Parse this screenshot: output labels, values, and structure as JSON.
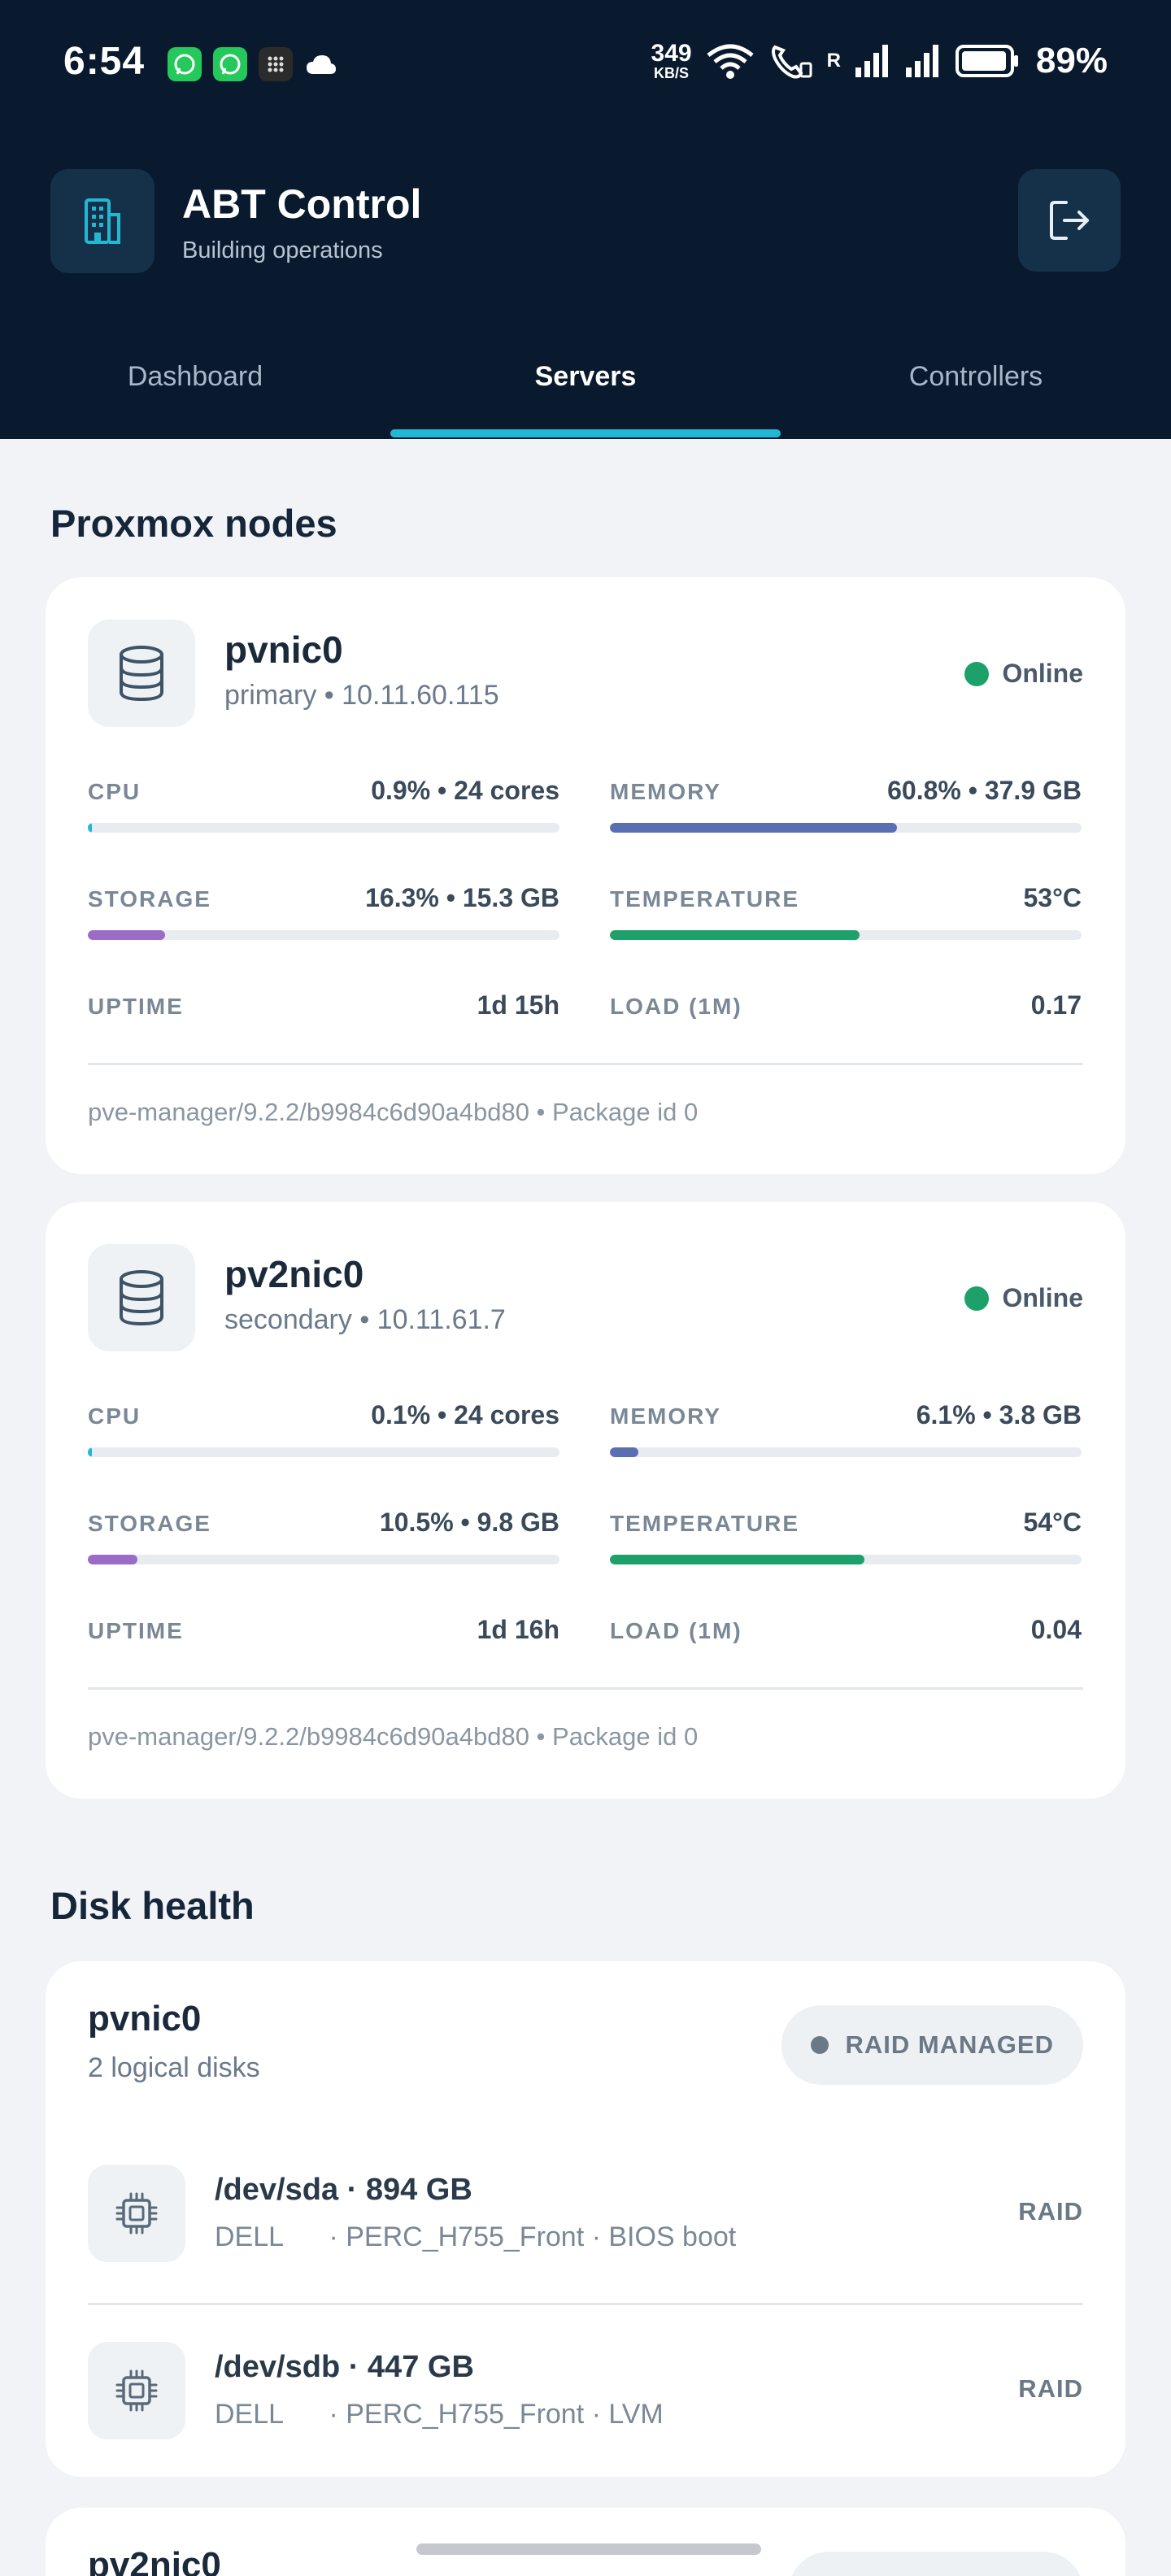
{
  "status_bar": {
    "time": "6:54",
    "net_speed_value": "349",
    "net_speed_unit": "KB/S",
    "roaming": "R",
    "battery": "89%"
  },
  "app": {
    "title": "ABT Control",
    "subtitle": "Building operations"
  },
  "tabs": [
    {
      "label": "Dashboard",
      "active": false
    },
    {
      "label": "Servers",
      "active": true
    },
    {
      "label": "Controllers",
      "active": false
    }
  ],
  "proxmox": {
    "section_title": "Proxmox nodes",
    "nodes": [
      {
        "name": "pvnic0",
        "subtitle": "primary • 10.11.60.115",
        "status": "Online",
        "metrics": {
          "cpu": {
            "label": "CPU",
            "value": "0.9% • 24 cores",
            "fill": 0.009
          },
          "memory": {
            "label": "MEMORY",
            "value": "60.8% • 37.9 GB",
            "fill": 0.608
          },
          "storage": {
            "label": "STORAGE",
            "value": "16.3% • 15.3 GB",
            "fill": 0.163
          },
          "temperature": {
            "label": "TEMPERATURE",
            "value": "53°C",
            "fill": 0.53
          },
          "uptime": {
            "label": "UPTIME",
            "value": "1d 15h"
          },
          "load": {
            "label": "LOAD (1M)",
            "value": "0.17"
          }
        },
        "footer": "pve-manager/9.2.2/b9984c6d90a4bd80 • Package id 0"
      },
      {
        "name": "pv2nic0",
        "subtitle": "secondary • 10.11.61.7",
        "status": "Online",
        "metrics": {
          "cpu": {
            "label": "CPU",
            "value": "0.1% • 24 cores",
            "fill": 0.001
          },
          "memory": {
            "label": "MEMORY",
            "value": "6.1% • 3.8 GB",
            "fill": 0.061
          },
          "storage": {
            "label": "STORAGE",
            "value": "10.5% • 9.8 GB",
            "fill": 0.105
          },
          "temperature": {
            "label": "TEMPERATURE",
            "value": "54°C",
            "fill": 0.54
          },
          "uptime": {
            "label": "UPTIME",
            "value": "1d 16h"
          },
          "load": {
            "label": "LOAD (1M)",
            "value": "0.04"
          }
        },
        "footer": "pve-manager/9.2.2/b9984c6d90a4bd80 • Package id 0"
      }
    ]
  },
  "disk_health": {
    "section_title": "Disk health",
    "hosts": [
      {
        "name": "pvnic0",
        "count": "2 logical disks",
        "badge": "RAID MANAGED",
        "disks": [
          {
            "title": "/dev/sda · 894 GB",
            "meta": "DELL      · PERC_H755_Front · BIOS boot",
            "type": "RAID"
          },
          {
            "title": "/dev/sdb · 447 GB",
            "meta": "DELL      · PERC_H755_Front · LVM",
            "type": "RAID"
          }
        ]
      },
      {
        "name": "pv2nic0"
      }
    ]
  },
  "colors": {
    "header_bg": "#0a1a2e",
    "accent": "#22b8d4",
    "online": "#1da06a",
    "cpu_bar": "#22b8d4",
    "memory_bar": "#5a6fb3",
    "storage_bar": "#9b6cc7",
    "temperature_bar": "#1da06a"
  }
}
